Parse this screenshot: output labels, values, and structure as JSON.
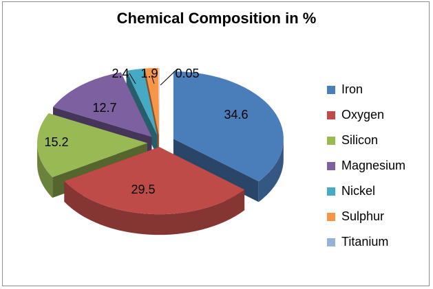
{
  "chart_data": {
    "type": "pie",
    "title": "Chemical Composition in %",
    "categories": [
      "Iron",
      "Oxygen",
      "Silicon",
      "Magnesium",
      "Nickel",
      "Sulphur",
      "Titanium"
    ],
    "values": [
      34.6,
      29.5,
      15.2,
      12.7,
      2.4,
      1.9,
      0.05
    ],
    "data_labels": [
      "34.6",
      "29.5",
      "15.2",
      "12.7",
      "2.4",
      "1.9",
      "0.05"
    ],
    "colors": [
      "#4a7ebb",
      "#be4b48",
      "#98b954",
      "#7d60a0",
      "#46aac5",
      "#f79646",
      "#95b3d7"
    ],
    "exploded": true,
    "three_d": true,
    "legend_position": "right"
  }
}
